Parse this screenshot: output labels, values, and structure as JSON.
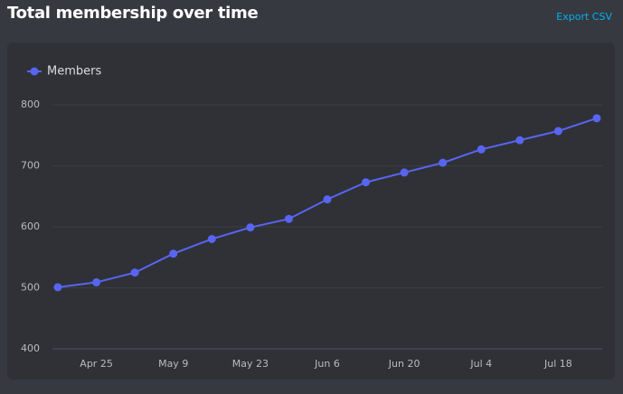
{
  "header": {
    "title": "Total membership over time",
    "action": "Export CSV"
  },
  "chart_data": {
    "type": "line",
    "categories": [
      null,
      "Apr 25",
      null,
      "May 9",
      null,
      "May 23",
      null,
      "Jun 6",
      null,
      "Jun 20",
      null,
      "Jul 4",
      null,
      "Jul 18",
      null
    ],
    "series": [
      {
        "name": "Members",
        "color": "#5865f2",
        "values": [
          501,
          509,
          525,
          556,
          580,
          599,
          613,
          645,
          673,
          689,
          705,
          727,
          742,
          757,
          778
        ]
      }
    ],
    "ylim": [
      400,
      800
    ],
    "yticks": [
      400,
      500,
      600,
      700,
      800
    ],
    "grid": true,
    "legend": "top-left"
  }
}
